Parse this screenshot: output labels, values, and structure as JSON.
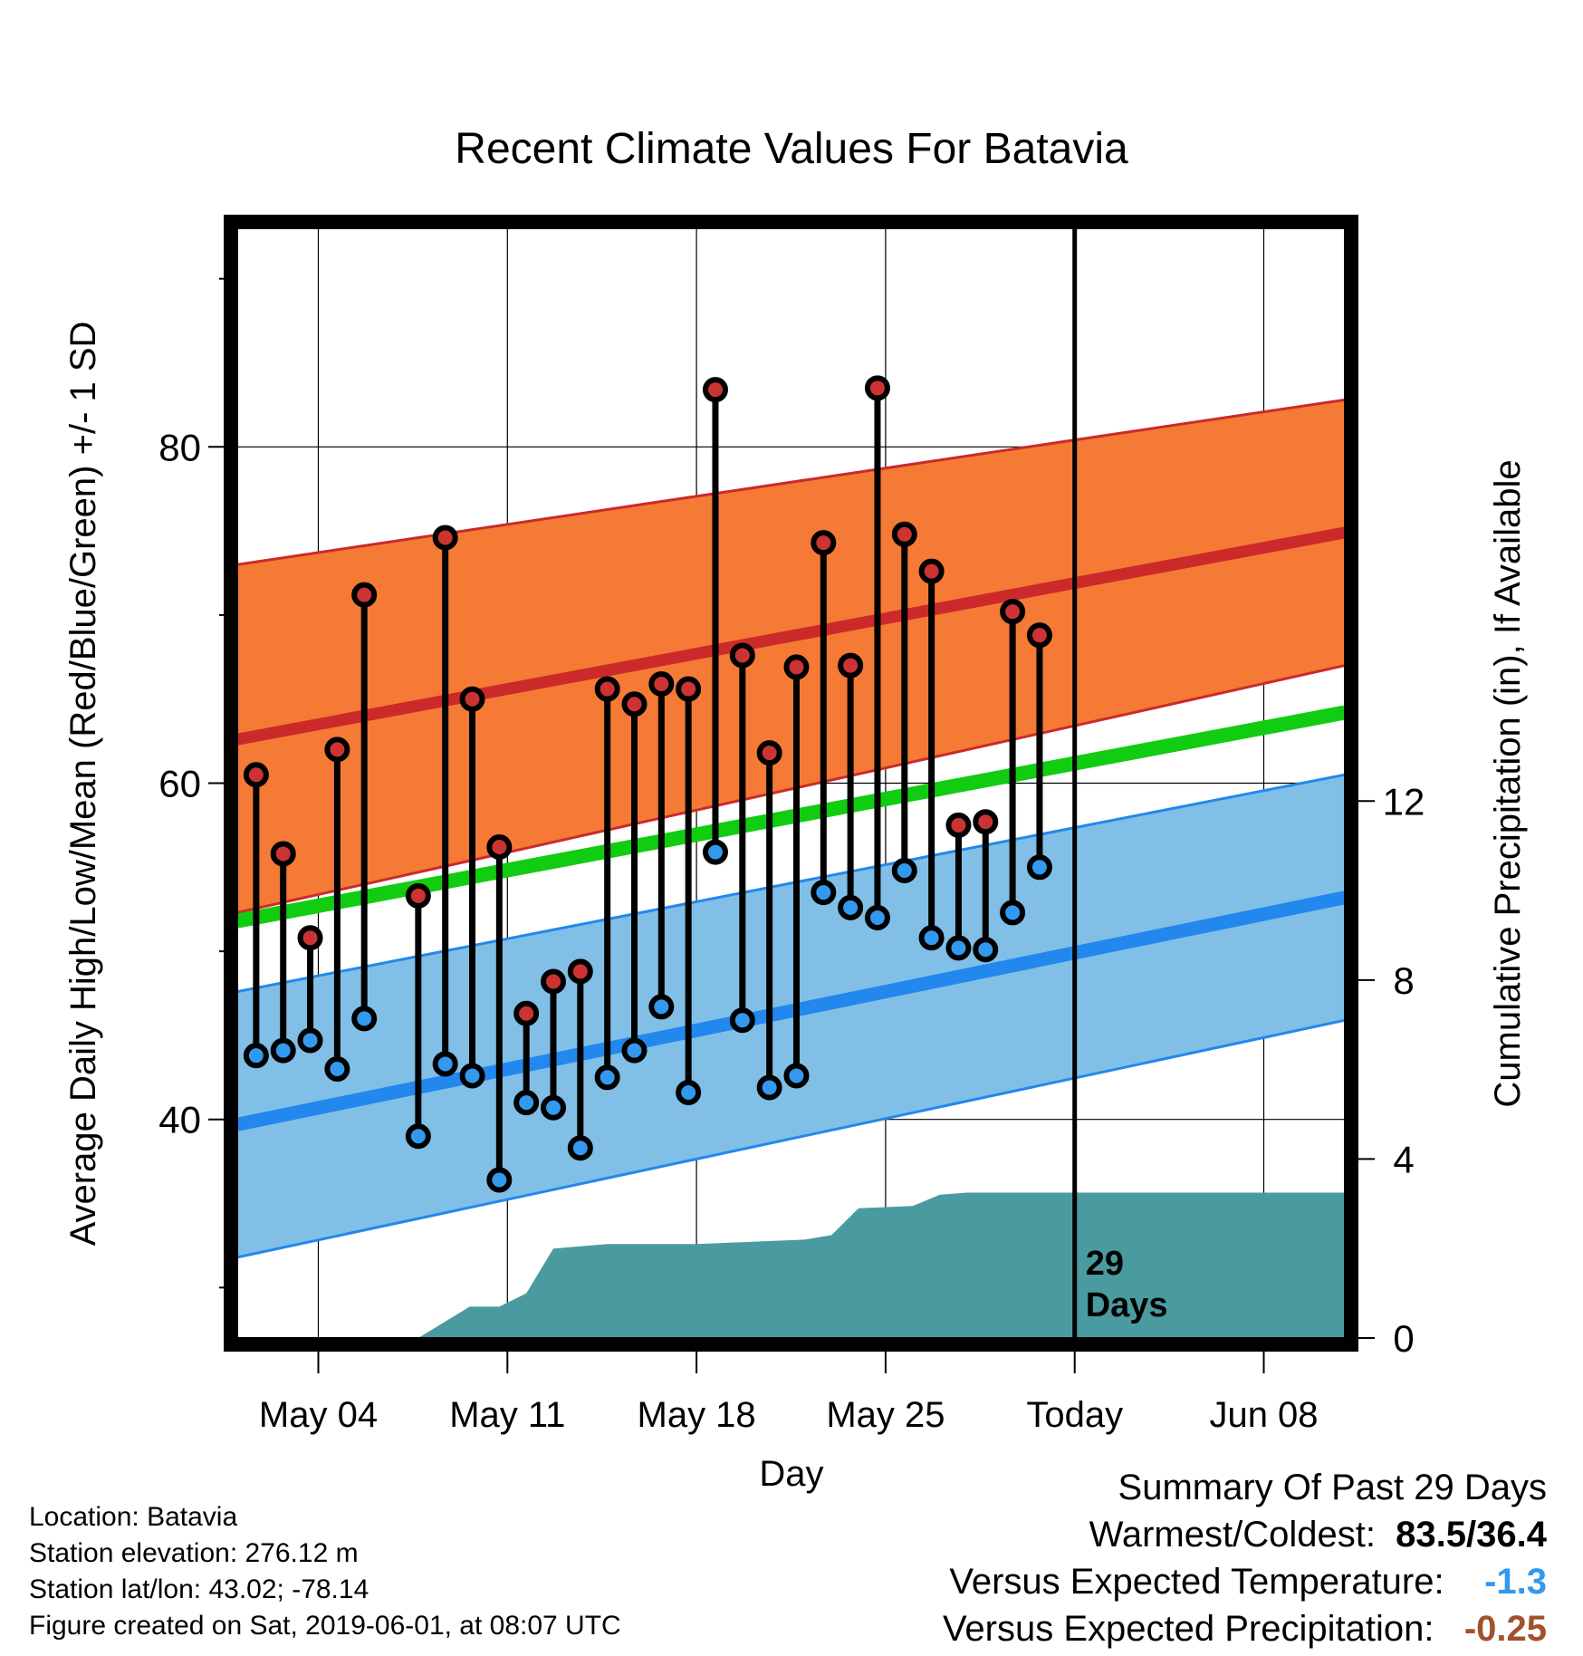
{
  "chart_data": {
    "type": "line",
    "title": "Recent Climate Values For Batavia",
    "xlabel": "Day",
    "ylabel_left": "Average Daily High/Low/Mean (Red/Blue/Green) +/- 1 SD",
    "ylabel_right": "Cumulative Precipitation (in), If Available",
    "x_tick_labels": [
      "May 04",
      "May 11",
      "May 18",
      "May 25",
      "Today",
      "Jun 08"
    ],
    "y_left_ticks": [
      40,
      60,
      80
    ],
    "y_right_ticks": [
      0,
      4,
      8,
      12
    ],
    "y_left_range": [
      27,
      93
    ],
    "y_right_range": [
      0,
      24.8
    ],
    "x_range": [
      0,
      41
    ],
    "today_label": [
      "29",
      "Days"
    ],
    "days": [
      {
        "high": 60.5,
        "low": 43.8
      },
      {
        "high": 55.8,
        "low": 44.1
      },
      {
        "high": 50.8,
        "low": 44.7
      },
      {
        "high": 62.0,
        "low": 43.0
      },
      {
        "high": 71.2,
        "low": 46.0
      },
      {
        "high": null,
        "low": null
      },
      {
        "high": 53.3,
        "low": 39.0
      },
      {
        "high": 74.6,
        "low": 43.3
      },
      {
        "high": 65.0,
        "low": 42.6
      },
      {
        "high": 56.2,
        "low": 36.4
      },
      {
        "high": 46.3,
        "low": 41.0
      },
      {
        "high": 48.2,
        "low": 40.7
      },
      {
        "high": 48.8,
        "low": 38.3
      },
      {
        "high": 65.6,
        "low": 42.5
      },
      {
        "high": 64.7,
        "low": 44.1
      },
      {
        "high": 65.9,
        "low": 46.7
      },
      {
        "high": 65.6,
        "low": 41.6
      },
      {
        "high": 83.4,
        "low": 55.9
      },
      {
        "high": 67.6,
        "low": 45.9
      },
      {
        "high": 61.8,
        "low": 41.9
      },
      {
        "high": 66.9,
        "low": 42.6
      },
      {
        "high": 74.3,
        "low": 53.5
      },
      {
        "high": 67.0,
        "low": 52.6
      },
      {
        "high": 83.5,
        "low": 52.0
      },
      {
        "high": 74.8,
        "low": 54.8
      },
      {
        "high": 72.6,
        "low": 50.8
      },
      {
        "high": 57.5,
        "low": 50.2
      },
      {
        "high": 57.7,
        "low": 50.1
      },
      {
        "high": 70.2,
        "low": 52.3
      },
      {
        "high": 68.8,
        "low": 55.0
      }
    ],
    "normals": {
      "x": [
        0,
        41
      ],
      "high_mean": [
        62.6,
        74.9
      ],
      "high_plus_sd": [
        73.0,
        82.8
      ],
      "high_minus_sd": [
        52.3,
        67.0
      ],
      "low_mean": [
        39.7,
        53.2
      ],
      "low_plus_sd": [
        47.6,
        60.5
      ],
      "low_minus_sd": [
        31.8,
        45.9
      ],
      "daily_mean": [
        51.8,
        64.2
      ]
    },
    "precip_cumulative": {
      "x": [
        0,
        6.7,
        8.6,
        9.7,
        10.7,
        11.7,
        13.7,
        17.0,
        21.0,
        22.0,
        23.0,
        25.0,
        26.0,
        27.0,
        29.0,
        41.0
      ],
      "y": [
        0,
        0,
        0.7,
        0.7,
        1.0,
        2.0,
        2.1,
        2.1,
        2.2,
        2.3,
        2.9,
        2.95,
        3.2,
        3.25,
        3.25,
        3.25
      ]
    }
  },
  "footer": {
    "location": "Location: Batavia",
    "elevation": "Station elevation: 276.12 m",
    "latlon": "Station lat/lon: 43.02; -78.14",
    "created": "Figure created on Sat, 2019-06-01, at 08:07 UTC"
  },
  "summary": {
    "heading": "Summary Of Past 29 Days",
    "warm_cold_label": "Warmest/Coldest:",
    "warm_cold_value": "83.5/36.4",
    "temp_label": "Versus Expected Temperature:",
    "temp_value": "-1.3",
    "precip_label": "Versus Expected Precipitation:",
    "precip_value": "-0.25"
  },
  "colors": {
    "high_band": "#f47a35",
    "high_line": "#cc2a2a",
    "low_band": "#82bfe6",
    "low_line": "#2288ee",
    "mean_line": "#11cc11",
    "precip": "#4a9ba0",
    "high_dot": "#cc3333",
    "low_dot": "#3399ee",
    "temp_value": "#3399ee",
    "precip_value": "#a0522d"
  }
}
